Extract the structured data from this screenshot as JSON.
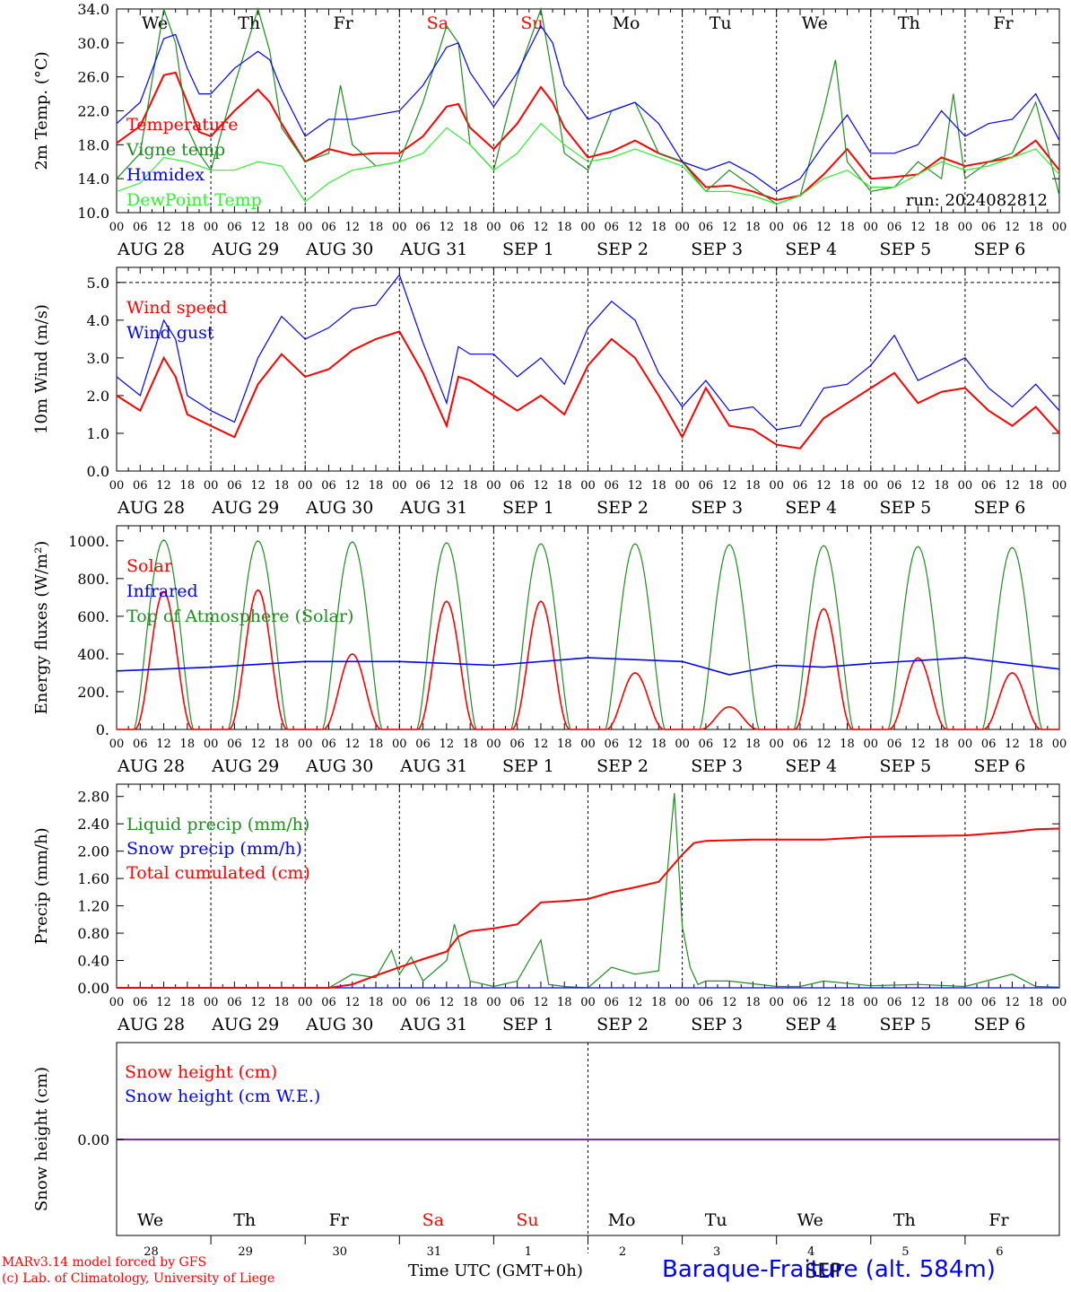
{
  "run_label": "run: 2024082812",
  "days_top": [
    {
      "label": "We",
      "color": "#000000"
    },
    {
      "label": "Th",
      "color": "#000000"
    },
    {
      "label": "Fr",
      "color": "#000000"
    },
    {
      "label": "Sa",
      "color": "#ff0000"
    },
    {
      "label": "Su",
      "color": "#ff0000"
    },
    {
      "label": "Mo",
      "color": "#000000"
    },
    {
      "label": "Tu",
      "color": "#000000"
    },
    {
      "label": "We",
      "color": "#000000"
    },
    {
      "label": "Th",
      "color": "#000000"
    },
    {
      "label": "Fr",
      "color": "#000000"
    }
  ],
  "date_labels": [
    "AUG 28",
    "AUG 29",
    "AUG 30",
    "AUG 31",
    "SEP  1",
    "SEP  2",
    "SEP  3",
    "SEP  4",
    "SEP  5",
    "SEP  6"
  ],
  "hour_ticks": [
    "00",
    "06",
    "12",
    "18"
  ],
  "day_numbers": [
    "28",
    "29",
    "30",
    "31",
    "1",
    "2",
    "3",
    "4",
    "5",
    "6"
  ],
  "month_mid_label": "SEP",
  "footer": {
    "model": "MARv3.14 model forced by GFS",
    "lab": "(c) Lab. of Climatology, University of Liege",
    "xlabel": "Time UTC (GMT+0h)",
    "station": "Baraque-Fraiture (alt. 584m)"
  },
  "colors": {
    "red": "#ff0000",
    "green": "#228b22",
    "blue": "#0000ff",
    "lightgreen": "#33ee33",
    "purple": "#7b2fa0"
  },
  "chart_data": [
    {
      "type": "line",
      "ylabel": "2m Temp. (°C)",
      "ylim": [
        10,
        34
      ],
      "yticks": [
        "34.0",
        "30.0",
        "26.0",
        "22.0",
        "18.0",
        "14.0",
        "10.0"
      ],
      "x_unit": "hours since Aug 28 00 UTC",
      "series": [
        {
          "name": "Temperature",
          "color": "red",
          "x": [
            0,
            6,
            12,
            15,
            18,
            21,
            24,
            30,
            36,
            39,
            42,
            48,
            54,
            60,
            66,
            72,
            78,
            84,
            87,
            90,
            96,
            102,
            108,
            111,
            114,
            120,
            126,
            132,
            138,
            144,
            150,
            156,
            162,
            168,
            174,
            180,
            186,
            192,
            198,
            204,
            210,
            216,
            222,
            228,
            234,
            240
          ],
          "y": [
            18.2,
            20.2,
            26.2,
            26.5,
            23.0,
            19.5,
            19.0,
            22.0,
            24.5,
            23.0,
            20.5,
            16.0,
            17.5,
            16.8,
            17.0,
            17.0,
            19.0,
            22.5,
            22.8,
            20.0,
            17.5,
            20.5,
            24.8,
            23.0,
            20.0,
            16.5,
            17.2,
            18.5,
            17.0,
            16.0,
            13.0,
            13.2,
            12.5,
            11.5,
            12.0,
            14.5,
            17.5,
            14.0,
            14.2,
            14.5,
            16.5,
            15.5,
            16.0,
            16.5,
            18.5,
            15.0
          ]
        },
        {
          "name": "Vigne temp",
          "color": "green",
          "x": [
            0,
            6,
            12,
            15,
            18,
            21,
            24,
            30,
            36,
            39,
            42,
            48,
            54,
            57,
            60,
            66,
            72,
            78,
            84,
            87,
            90,
            96,
            102,
            108,
            111,
            114,
            120,
            126,
            132,
            138,
            144,
            150,
            156,
            162,
            168,
            174,
            180,
            183,
            186,
            192,
            198,
            204,
            210,
            213,
            216,
            222,
            228,
            234,
            240
          ],
          "y": [
            14.0,
            17.0,
            34.0,
            30.0,
            20.0,
            17.0,
            15.0,
            25.0,
            34.0,
            29.0,
            20.0,
            16.0,
            17.0,
            25.0,
            18.0,
            15.5,
            16.0,
            23.0,
            32.0,
            30.0,
            18.0,
            15.0,
            26.0,
            34.0,
            26.0,
            17.0,
            15.0,
            22.0,
            23.0,
            17.0,
            16.0,
            12.5,
            15.0,
            13.0,
            11.0,
            12.0,
            22.0,
            28.0,
            16.0,
            12.5,
            13.0,
            16.0,
            14.0,
            24.0,
            14.0,
            16.0,
            17.0,
            23.0,
            12.0
          ]
        },
        {
          "name": "Humidex",
          "color": "blue",
          "x": [
            0,
            6,
            12,
            15,
            18,
            21,
            24,
            30,
            36,
            39,
            42,
            48,
            54,
            60,
            66,
            72,
            78,
            84,
            87,
            90,
            96,
            102,
            108,
            111,
            114,
            120,
            126,
            132,
            138,
            144,
            150,
            156,
            162,
            168,
            174,
            180,
            186,
            192,
            198,
            204,
            210,
            216,
            222,
            228,
            234,
            240
          ],
          "y": [
            20.5,
            23.0,
            30.5,
            31.0,
            27.0,
            24.0,
            24.0,
            27.0,
            29.0,
            28.0,
            24.5,
            19.0,
            21.0,
            21.0,
            21.5,
            22.0,
            25.0,
            29.5,
            30.0,
            26.5,
            22.5,
            26.5,
            32.0,
            30.0,
            25.0,
            21.0,
            22.0,
            23.0,
            20.5,
            16.0,
            15.0,
            16.0,
            14.5,
            12.5,
            14.0,
            18.0,
            21.5,
            17.0,
            17.0,
            18.0,
            22.0,
            19.0,
            20.5,
            21.0,
            24.0,
            18.5
          ]
        },
        {
          "name": "DewPoint Temp",
          "color": "lightgreen",
          "x": [
            0,
            6,
            12,
            18,
            24,
            30,
            36,
            42,
            48,
            54,
            60,
            66,
            72,
            78,
            84,
            90,
            96,
            102,
            108,
            114,
            120,
            126,
            132,
            138,
            144,
            150,
            156,
            162,
            168,
            174,
            180,
            186,
            192,
            198,
            204,
            210,
            216,
            222,
            228,
            234,
            240
          ],
          "y": [
            12.5,
            13.5,
            16.5,
            16.0,
            15.0,
            15.0,
            16.0,
            15.5,
            11.3,
            13.5,
            15.0,
            15.5,
            16.0,
            17.0,
            20.0,
            18.0,
            15.0,
            17.0,
            20.5,
            18.0,
            16.0,
            16.5,
            17.5,
            16.5,
            15.5,
            12.5,
            12.5,
            12.0,
            11.0,
            12.0,
            14.0,
            15.0,
            13.0,
            13.0,
            14.5,
            16.0,
            15.0,
            15.5,
            16.5,
            17.5,
            14.5
          ]
        }
      ]
    },
    {
      "type": "line",
      "ylabel": "10m Wind (m/s)",
      "ylim": [
        0,
        5.4
      ],
      "yticks": [
        "5.0",
        "4.0",
        "3.0",
        "2.0",
        "1.0",
        "0.0"
      ],
      "ref_line": 5.0,
      "series": [
        {
          "name": "Wind speed",
          "color": "red",
          "x": [
            0,
            6,
            12,
            15,
            18,
            24,
            30,
            36,
            42,
            48,
            54,
            60,
            66,
            72,
            78,
            84,
            87,
            90,
            96,
            102,
            108,
            114,
            120,
            126,
            132,
            138,
            144,
            150,
            156,
            162,
            168,
            174,
            180,
            186,
            192,
            198,
            204,
            210,
            216,
            222,
            228,
            234,
            240
          ],
          "y": [
            2.0,
            1.6,
            3.0,
            2.5,
            1.5,
            1.2,
            0.9,
            2.3,
            3.1,
            2.5,
            2.7,
            3.2,
            3.5,
            3.7,
            2.6,
            1.2,
            2.5,
            2.4,
            2.0,
            1.6,
            2.0,
            1.5,
            2.8,
            3.5,
            3.0,
            2.0,
            0.9,
            2.2,
            1.2,
            1.1,
            0.7,
            0.6,
            1.4,
            1.8,
            2.2,
            2.6,
            1.8,
            2.1,
            2.2,
            1.6,
            1.2,
            1.7,
            1.0
          ]
        },
        {
          "name": "Wind gust",
          "color": "blue",
          "x": [
            0,
            6,
            12,
            15,
            18,
            24,
            30,
            36,
            42,
            48,
            54,
            60,
            66,
            72,
            78,
            84,
            87,
            90,
            96,
            102,
            108,
            114,
            120,
            126,
            132,
            138,
            144,
            150,
            156,
            162,
            168,
            174,
            180,
            186,
            192,
            198,
            204,
            210,
            216,
            222,
            228,
            234,
            240
          ],
          "y": [
            2.5,
            2.0,
            4.0,
            3.5,
            2.0,
            1.6,
            1.3,
            3.0,
            4.1,
            3.5,
            3.8,
            4.3,
            4.4,
            5.2,
            3.4,
            1.8,
            3.3,
            3.1,
            3.1,
            2.5,
            3.0,
            2.3,
            3.8,
            4.5,
            4.0,
            2.6,
            1.7,
            2.4,
            1.6,
            1.7,
            1.1,
            1.2,
            2.2,
            2.3,
            2.8,
            3.6,
            2.4,
            2.7,
            3.0,
            2.2,
            1.7,
            2.3,
            1.6
          ]
        }
      ]
    },
    {
      "type": "line",
      "ylabel": "Energy fluxes (W/m²)",
      "ylim": [
        0,
        1080
      ],
      "yticks": [
        "1000.",
        "800.",
        "600.",
        "400.",
        "200.",
        "0."
      ],
      "series": [
        {
          "name": "Solar",
          "color": "red",
          "daily_peaks": [
            730,
            740,
            400,
            680,
            680,
            300,
            120,
            640,
            380,
            300
          ]
        },
        {
          "name": "Infrared",
          "color": "blue",
          "x": [
            0,
            24,
            48,
            72,
            96,
            120,
            144,
            156,
            168,
            180,
            192,
            216,
            240
          ],
          "y": [
            310,
            330,
            360,
            360,
            340,
            380,
            360,
            290,
            340,
            330,
            350,
            380,
            320
          ]
        },
        {
          "name": "Top of Atmosphere (Solar)",
          "color": "green",
          "daily_peaks": [
            1005,
            1000,
            995,
            990,
            985,
            985,
            980,
            975,
            970,
            965
          ]
        }
      ]
    },
    {
      "type": "line",
      "ylabel": "Precip (mm/h)",
      "ylim": [
        0,
        2.98
      ],
      "yticks": [
        "2.80",
        "2.40",
        "2.00",
        "1.60",
        "1.20",
        "0.80",
        "0.40",
        "0.00"
      ],
      "series": [
        {
          "name": "Liquid precip (mm/h)",
          "color": "green",
          "x": [
            0,
            54,
            60,
            66,
            70,
            72,
            75,
            78,
            84,
            86,
            90,
            96,
            102,
            108,
            110,
            114,
            120,
            126,
            132,
            138,
            142,
            144,
            146,
            148,
            150,
            156,
            168,
            174,
            180,
            192,
            204,
            216,
            228,
            234,
            240
          ],
          "y": [
            0,
            0,
            0.2,
            0.15,
            0.55,
            0.2,
            0.45,
            0.1,
            0.4,
            0.93,
            0.1,
            0.02,
            0.1,
            0.7,
            0.05,
            0.02,
            0,
            0.3,
            0.2,
            0.25,
            2.85,
            0.9,
            0.3,
            0.05,
            0.1,
            0.1,
            0.02,
            0.02,
            0.1,
            0.03,
            0.05,
            0.02,
            0.2,
            0.02,
            0.01
          ]
        },
        {
          "name": "Snow precip (mm/h)",
          "color": "blue",
          "x": [
            0,
            240
          ],
          "y": [
            0,
            0
          ]
        },
        {
          "name": "Total cumulated (cm)",
          "color": "red",
          "x": [
            0,
            54,
            60,
            66,
            72,
            78,
            84,
            87,
            90,
            96,
            102,
            108,
            114,
            120,
            126,
            132,
            138,
            144,
            147,
            150,
            162,
            180,
            192,
            204,
            216,
            228,
            234,
            240
          ],
          "y": [
            0,
            0,
            0.05,
            0.18,
            0.3,
            0.42,
            0.53,
            0.75,
            0.83,
            0.87,
            0.93,
            1.25,
            1.27,
            1.3,
            1.4,
            1.47,
            1.55,
            1.95,
            2.12,
            2.15,
            2.17,
            2.17,
            2.21,
            2.22,
            2.23,
            2.28,
            2.32,
            2.33
          ]
        }
      ]
    },
    {
      "type": "line",
      "ylabel": "Snow height (cm)",
      "yticks": [
        "0.00"
      ],
      "series": [
        {
          "name": "Snow height (cm)",
          "color": "red",
          "x": [
            0,
            240
          ],
          "y": [
            0,
            0
          ]
        },
        {
          "name": "Snow height (cm W.E.)",
          "color": "blue",
          "x": [
            0,
            240
          ],
          "y": [
            0,
            0
          ]
        }
      ]
    }
  ]
}
